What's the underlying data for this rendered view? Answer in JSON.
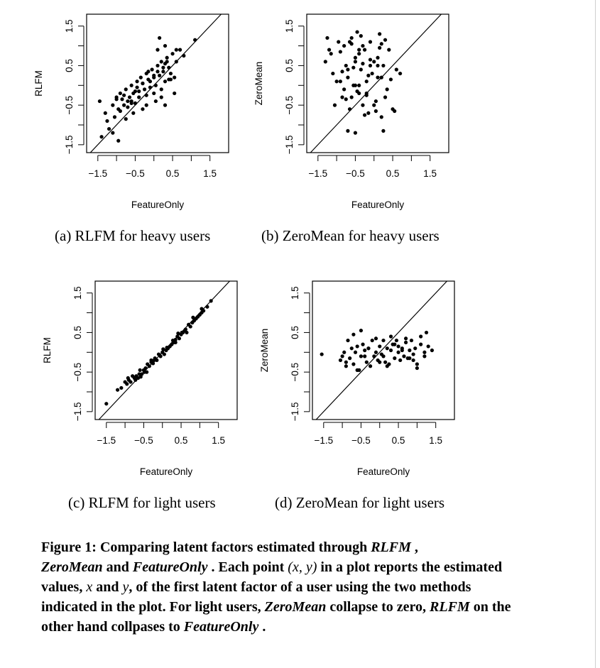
{
  "chart_data": [
    {
      "id": "a",
      "type": "scatter",
      "xlabel": "FeatureOnly",
      "ylabel": "RLFM",
      "xlim": [
        -1.8,
        2.0
      ],
      "ylim": [
        -1.7,
        1.8
      ],
      "xticks": [
        "-1.5",
        "-0.5",
        "0.5",
        "1.5"
      ],
      "yticks": [
        "-1.5",
        "-0.5",
        "0.5",
        "1.5"
      ],
      "reference_line": "y = x",
      "caption": "(a) RLFM for heavy users",
      "x": [
        -1.45,
        -1.3,
        -1.25,
        -1.1,
        -1.05,
        -1.0,
        -0.95,
        -0.9,
        -0.85,
        -0.8,
        -0.75,
        -0.7,
        -0.65,
        -0.6,
        -0.55,
        -0.5,
        -0.45,
        -0.4,
        -0.35,
        -0.3,
        -0.25,
        -0.2,
        -0.15,
        -0.1,
        -0.05,
        0.0,
        0.05,
        0.1,
        0.15,
        0.2,
        0.25,
        0.3,
        0.35,
        0.4,
        0.45,
        0.5,
        0.55,
        0.6,
        0.7,
        0.8,
        -1.4,
        -1.2,
        -1.0,
        -0.9,
        -0.8,
        -0.7,
        -0.6,
        -0.5,
        -0.4,
        -0.3,
        -0.2,
        -0.1,
        0.0,
        0.1,
        0.2,
        0.3,
        0.4,
        -0.6,
        -0.3,
        0.0,
        0.2,
        0.35,
        -0.45,
        -0.15,
        0.05,
        0.25,
        -0.75,
        -0.55,
        -0.2,
        0.1,
        0.3,
        0.45,
        -1.1,
        -0.95,
        0.15,
        0.55,
        1.1,
        0.3,
        0.6
      ],
      "y": [
        -0.4,
        -0.7,
        -0.9,
        -0.5,
        -0.8,
        -0.3,
        -0.6,
        -0.2,
        -0.35,
        -0.5,
        -0.1,
        -0.4,
        -0.3,
        0.0,
        -0.2,
        -0.45,
        0.1,
        -0.15,
        0.2,
        0.05,
        -0.1,
        0.3,
        0.15,
        -0.05,
        0.4,
        0.2,
        0.0,
        0.5,
        0.25,
        0.6,
        0.35,
        0.1,
        0.7,
        0.45,
        0.3,
        0.8,
        0.2,
        0.6,
        0.9,
        0.75,
        -1.3,
        -1.1,
        -0.35,
        -0.65,
        -0.25,
        -0.55,
        -0.4,
        -0.15,
        -0.3,
        0.05,
        -0.25,
        0.1,
        -0.2,
        0.35,
        -0.3,
        0.55,
        0.15,
        -0.45,
        -0.6,
        0.25,
        -0.1,
        0.6,
        -0.05,
        0.35,
        -0.4,
        0.45,
        -0.85,
        -0.7,
        -0.5,
        0.9,
        1.0,
        0.15,
        -1.2,
        -1.4,
        1.2,
        -0.2,
        1.15,
        -0.5,
        0.9
      ]
    },
    {
      "id": "b",
      "type": "scatter",
      "xlabel": "FeatureOnly",
      "ylabel": "ZeroMean",
      "xlim": [
        -1.8,
        2.0
      ],
      "ylim": [
        -1.7,
        1.8
      ],
      "xticks": [
        "-1.5",
        "-0.5",
        "0.5",
        "1.5"
      ],
      "yticks": [
        "-1.5",
        "-0.5",
        "0.5",
        "1.5"
      ],
      "reference_line": "y = x",
      "caption": "(b) ZeroMean for heavy users",
      "x": [
        -1.25,
        -1.3,
        -1.2,
        -1.1,
        -1.05,
        -0.95,
        -0.9,
        -0.85,
        -0.8,
        -0.75,
        -0.7,
        -0.65,
        -0.6,
        -0.55,
        -0.5,
        -0.45,
        -0.4,
        -0.35,
        -0.3,
        -0.25,
        -0.2,
        -0.15,
        -0.1,
        -0.05,
        0.0,
        0.05,
        0.1,
        0.15,
        0.2,
        0.25,
        0.3,
        0.4,
        0.5,
        0.6,
        -1.15,
        -1.0,
        -0.8,
        -0.7,
        -0.6,
        -0.5,
        -0.4,
        -0.3,
        -0.2,
        -0.1,
        0.0,
        0.1,
        0.2,
        0.3,
        -0.9,
        -0.75,
        -0.55,
        -0.45,
        -0.35,
        -0.25,
        -0.15,
        0.05,
        0.15,
        0.35,
        0.45,
        -0.85,
        -0.65,
        -0.4,
        -0.2,
        0.1,
        0.55,
        -0.7,
        -0.5,
        -0.3,
        -0.1,
        0.25,
        -0.6,
        -0.4,
        0.7,
        0.2,
        -0.5
      ],
      "y": [
        1.2,
        0.6,
        0.9,
        0.3,
        -0.5,
        1.1,
        0.1,
        -0.3,
        1.0,
        0.5,
        0.2,
        -0.6,
        1.2,
        0.0,
        0.7,
        1.35,
        -0.2,
        0.4,
        -0.5,
        0.9,
        0.1,
        -0.7,
        1.1,
        0.3,
        0.6,
        -0.4,
        0.2,
        1.3,
        -0.8,
        0.5,
        -0.3,
        0.9,
        -0.6,
        0.4,
        0.8,
        0.1,
        -0.1,
        0.4,
        -0.3,
        0.6,
        0.0,
        1.0,
        -0.2,
        0.5,
        -0.5,
        0.7,
        0.2,
        1.15,
        0.85,
        -0.35,
        0.45,
        -0.15,
        1.25,
        -0.75,
        0.25,
        -0.65,
        0.95,
        -0.1,
        0.15,
        0.35,
        1.1,
        0.8,
        -0.25,
        0.5,
        -0.65,
        -1.15,
        -1.2,
        0.55,
        0.65,
        -1.15,
        1.05,
        0.9,
        0.3,
        1.05,
        0.0
      ]
    },
    {
      "id": "c",
      "type": "scatter",
      "xlabel": "FeatureOnly",
      "ylabel": "RLFM",
      "xlim": [
        -1.8,
        2.0
      ],
      "ylim": [
        -1.7,
        1.8
      ],
      "xticks": [
        "-1.5",
        "-0.5",
        "0.5",
        "1.5"
      ],
      "yticks": [
        "-1.5",
        "-0.5",
        "0.5",
        "1.5"
      ],
      "reference_line": "y = x",
      "caption": "(c) RLFM for light users",
      "x": [
        -1.5,
        -1.2,
        -1.1,
        -1.0,
        -0.95,
        -0.9,
        -0.85,
        -0.8,
        -0.75,
        -0.7,
        -0.65,
        -0.6,
        -0.55,
        -0.5,
        -0.45,
        -0.4,
        -0.35,
        -0.3,
        -0.25,
        -0.2,
        -0.15,
        -0.1,
        -0.05,
        0.0,
        0.05,
        0.1,
        0.15,
        0.2,
        0.25,
        0.3,
        0.35,
        0.4,
        0.45,
        0.5,
        0.55,
        0.6,
        0.65,
        0.7,
        0.75,
        0.8,
        0.85,
        0.9,
        0.95,
        1.0,
        1.05,
        1.1,
        1.2,
        1.3,
        -0.92,
        -0.62,
        -0.48,
        -0.3,
        0.02,
        0.28,
        0.42,
        0.62,
        0.82,
        1.05,
        -0.72,
        -0.58,
        -0.42,
        -0.22,
        0.12,
        0.35,
        0.52
      ],
      "y": [
        -1.3,
        -0.95,
        -0.9,
        -0.75,
        -0.8,
        -0.7,
        -0.75,
        -0.6,
        -0.65,
        -0.6,
        -0.65,
        -0.45,
        -0.55,
        -0.45,
        -0.4,
        -0.3,
        -0.35,
        -0.2,
        -0.28,
        -0.15,
        -0.2,
        -0.05,
        -0.1,
        0.0,
        -0.05,
        0.05,
        0.1,
        0.15,
        0.2,
        0.25,
        0.25,
        0.4,
        0.35,
        0.45,
        0.5,
        0.55,
        0.5,
        0.7,
        0.65,
        0.75,
        0.8,
        0.85,
        0.9,
        0.95,
        1.0,
        1.05,
        1.15,
        1.3,
        -0.65,
        -0.55,
        -0.5,
        -0.25,
        0.08,
        0.3,
        0.48,
        0.58,
        0.88,
        1.1,
        -0.7,
        -0.62,
        -0.5,
        -0.2,
        0.12,
        0.32,
        0.5
      ]
    },
    {
      "id": "d",
      "type": "scatter",
      "xlabel": "FeatureOnly",
      "ylabel": "ZeroMean",
      "xlim": [
        -1.8,
        2.0
      ],
      "ylim": [
        -1.7,
        1.8
      ],
      "xticks": [
        "-1.5",
        "-0.5",
        "0.5",
        "1.5"
      ],
      "yticks": [
        "-1.5",
        "-0.5",
        "0.5",
        "1.5"
      ],
      "reference_line": "y = x",
      "caption": "(d) ZeroMean for light users",
      "x": [
        -1.55,
        -1.05,
        -1.0,
        -0.95,
        -0.9,
        -0.85,
        -0.8,
        -0.75,
        -0.7,
        -0.65,
        -0.6,
        -0.55,
        -0.5,
        -0.45,
        -0.4,
        -0.35,
        -0.3,
        -0.25,
        -0.2,
        -0.15,
        -0.1,
        -0.05,
        0.0,
        0.05,
        0.1,
        0.15,
        0.2,
        0.25,
        0.3,
        0.35,
        0.4,
        0.45,
        0.5,
        0.55,
        0.6,
        0.65,
        0.7,
        0.75,
        0.8,
        0.85,
        0.9,
        0.95,
        1.0,
        1.1,
        1.2,
        1.3,
        1.4,
        -0.9,
        -0.7,
        -0.5,
        -0.3,
        -0.1,
        0.1,
        0.3,
        0.5,
        0.7,
        0.9,
        1.1,
        1.25,
        -0.6,
        -0.4,
        0.0,
        0.2,
        0.4,
        0.6,
        0.8,
        1.0,
        1.2
      ],
      "y": [
        -0.05,
        -0.2,
        -0.1,
        0.0,
        -0.25,
        0.3,
        -0.15,
        0.1,
        -0.3,
        0.0,
        0.15,
        -0.45,
        -0.1,
        0.2,
        0.05,
        -0.25,
        0.1,
        -0.35,
        0.3,
        -0.1,
        0.0,
        -0.2,
        0.15,
        -0.05,
        0.3,
        -0.25,
        0.1,
        -0.3,
        0.05,
        0.2,
        -0.15,
        0.3,
        0.0,
        -0.2,
        0.1,
        -0.1,
        0.25,
        -0.15,
        0.05,
        0.3,
        -0.2,
        0.1,
        -0.3,
        0.2,
        -0.1,
        0.15,
        0.05,
        -0.35,
        0.45,
        0.55,
        0.1,
        0.35,
        -0.1,
        0.4,
        0.15,
        0.35,
        -0.05,
        0.4,
        0.5,
        -0.45,
        -0.1,
        -0.25,
        -0.35,
        0.2,
        0.05,
        -0.15,
        -0.4,
        0.0
      ]
    }
  ],
  "captions": {
    "a": "(a) RLFM for heavy users",
    "b": "(b) ZeroMean for heavy users",
    "c": "(c) RLFM for light users",
    "d": "(d) ZeroMean for light users"
  },
  "figure_caption": {
    "label": "Figure 1: Comparing latent factors estimated through ",
    "rlfm_1": "RLFM",
    "part2": " ,",
    "zeromean_1": "ZeroMean",
    "part3": " and ",
    "featureonly_1": "FeatureOnly",
    "part4": " . Each point ",
    "math_xy": "(x, y)",
    "part5": " in a plot reports the estimated values, ",
    "math_x": "x",
    "part6": " and ",
    "math_y": "y",
    "part7": ", of the first latent factor of a user using the two methods indicated in the plot. For light users, ",
    "zeromean_2": "ZeroMean",
    "part8": " collapse to zero, ",
    "rlfm_2": "RLFM",
    "part9": " on the other hand collpases to ",
    "featureonly_2": "FeatureOnly",
    "part10": " ."
  }
}
